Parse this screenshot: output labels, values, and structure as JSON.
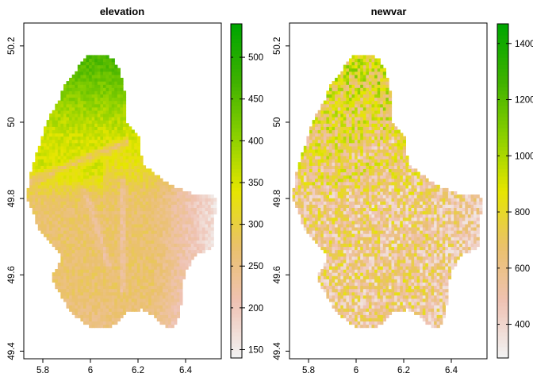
{
  "chart_data": [
    {
      "type": "heatmap",
      "title": "elevation",
      "x_ticks": [
        "5.8",
        "6",
        "6.2",
        "6.4"
      ],
      "x_tick_values": [
        5.8,
        6.0,
        6.2,
        6.4
      ],
      "y_ticks": [
        "49.4",
        "49.6",
        "49.8",
        "50",
        "50.2"
      ],
      "y_tick_values": [
        49.4,
        49.6,
        49.8,
        50.0,
        50.2
      ],
      "xlim": [
        5.72,
        6.55
      ],
      "ylim": [
        49.38,
        50.26
      ],
      "legend_ticks": [
        "150",
        "200",
        "250",
        "300",
        "350",
        "400",
        "450",
        "500"
      ],
      "legend_values": [
        150,
        200,
        250,
        300,
        350,
        400,
        450,
        500
      ],
      "legend_range": [
        140,
        540
      ],
      "colors": [
        "#f2f2f2",
        "#efc2b3",
        "#eac16b",
        "#e6e600",
        "#8bd000",
        "#3eb100",
        "#00a600"
      ]
    },
    {
      "type": "heatmap",
      "title": "newvar",
      "x_ticks": [
        "6",
        "6.2",
        "6.4",
        "5.8"
      ],
      "x_tick_values": [
        6.0,
        6.2,
        6.4,
        5.8
      ],
      "y_ticks": [
        "49.4",
        "49.6",
        "49.8",
        "50",
        "50.2"
      ],
      "y_tick_values": [
        49.4,
        49.6,
        49.8,
        50.0,
        50.2
      ],
      "xlim": [
        5.72,
        6.55
      ],
      "ylim": [
        49.38,
        50.26
      ],
      "legend_ticks": [
        "400",
        "600",
        "800",
        "1000",
        "1200",
        "1400"
      ],
      "legend_values": [
        400,
        600,
        800,
        1000,
        1200,
        1400
      ],
      "legend_range": [
        280,
        1470
      ],
      "colors": [
        "#f2f2f2",
        "#efc2b3",
        "#eac16b",
        "#e6e600",
        "#8bd000",
        "#3eb100",
        "#00a600"
      ]
    }
  ]
}
